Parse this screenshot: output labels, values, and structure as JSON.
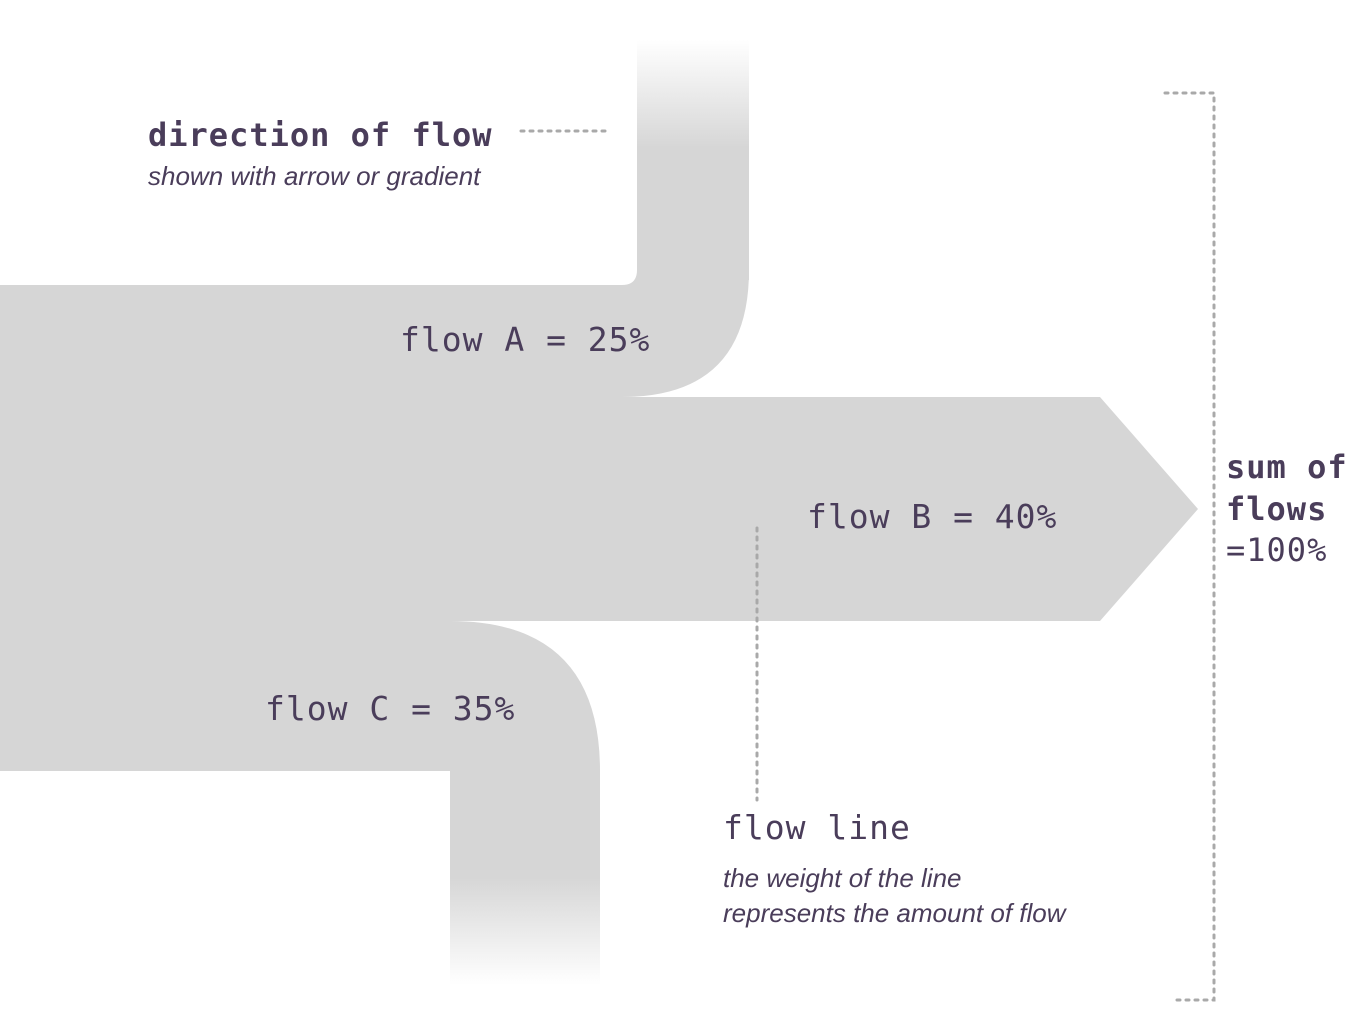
{
  "diagram": {
    "direction": {
      "title": "direction of flow",
      "subtitle": "shown with arrow or gradient"
    },
    "flows": [
      {
        "label": "flow A = 25%",
        "name": "A",
        "percent": 25
      },
      {
        "label": "flow B = 40%",
        "name": "B",
        "percent": 40
      },
      {
        "label": "flow C = 35%",
        "name": "C",
        "percent": 35
      }
    ],
    "flow_line": {
      "title": "flow line",
      "description_line1": "the weight of the line",
      "description_line2": "represents the amount of flow"
    },
    "sum": {
      "line1": "sum of",
      "line2": "flows",
      "line3": "=100%"
    },
    "colors": {
      "flow_fill": "#d6d6d6",
      "text": "#4a3d5a",
      "dotted": "#a9a9a9",
      "background": "#ffffff"
    }
  }
}
